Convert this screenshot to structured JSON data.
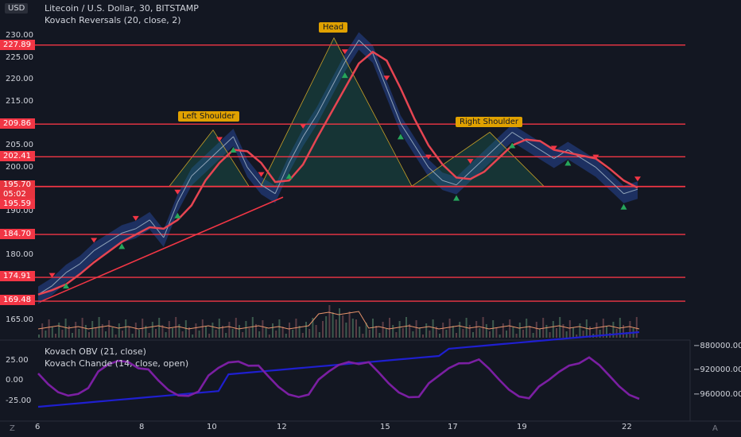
{
  "header": {
    "currency_badge": "USD",
    "title": "Litecoin / U.S. Dollar, 30, BITSTAMP",
    "indicator": "Kovach Reversals (20, close, 2)"
  },
  "left_axis": {
    "ticks": [
      "230.00",
      "225.00",
      "220.00",
      "215.00",
      "210.00",
      "205.00",
      "200.00",
      "190.00",
      "180.00",
      "165.00"
    ]
  },
  "price_levels": [
    {
      "label": "227.89",
      "value": 227.89
    },
    {
      "label": "209.86",
      "value": 209.86
    },
    {
      "label": "202.41",
      "value": 202.41
    },
    {
      "label": "195.59",
      "value": 195.59
    },
    {
      "label": "184.70",
      "value": 184.7
    },
    {
      "label": "174.91",
      "value": 174.91
    },
    {
      "label": "169.48",
      "value": 169.48
    }
  ],
  "current_price": {
    "value": "195.70",
    "countdown": "05:02"
  },
  "patterns": {
    "head": "Head",
    "left_shoulder": "Left Shoulder",
    "right_shoulder": "Right Shoulder"
  },
  "lower_panel": {
    "legend_obv": "Kovach OBV (21, close)",
    "legend_chande": "Kovach Chande (14, close, open)",
    "left_ticks": [
      "25.00",
      "0.00",
      "-25.00"
    ],
    "right_ticks": [
      "880000.00",
      "−920000.00",
      "−960000.00"
    ]
  },
  "x_axis": {
    "ticks": [
      "6",
      "8",
      "10",
      "12",
      "15",
      "17",
      "19",
      "22"
    ]
  },
  "corner_icons": {
    "left": "Z",
    "right": "A"
  },
  "colors": {
    "background": "#131722",
    "level_line": "#f23645",
    "price_ma": "#e64552",
    "band": "#2a4fb0",
    "obv": "#1f1fd0",
    "chande": "#7b1fa2"
  },
  "chart_data": {
    "type": "line",
    "title": "Litecoin / U.S. Dollar, 30, BITSTAMP",
    "ylim": [
      161,
      232
    ],
    "x_ticks": [
      "6",
      "8",
      "10",
      "12",
      "15",
      "17",
      "19",
      "22"
    ],
    "horizontal_levels": [
      227.89,
      209.86,
      202.41,
      195.59,
      184.7,
      174.91,
      169.48
    ],
    "series": [
      {
        "name": "close",
        "values": [
          171,
          173,
          176,
          178,
          181,
          183,
          185,
          186,
          188,
          184,
          192,
          198,
          201,
          204,
          207,
          200,
          196,
          194,
          201,
          207,
          212,
          218,
          224,
          229,
          226,
          218,
          210,
          205,
          200,
          197,
          196,
          199,
          202,
          205,
          208,
          206,
          204,
          202,
          204,
          202,
          200,
          197,
          194,
          195
        ]
      }
    ]
  }
}
